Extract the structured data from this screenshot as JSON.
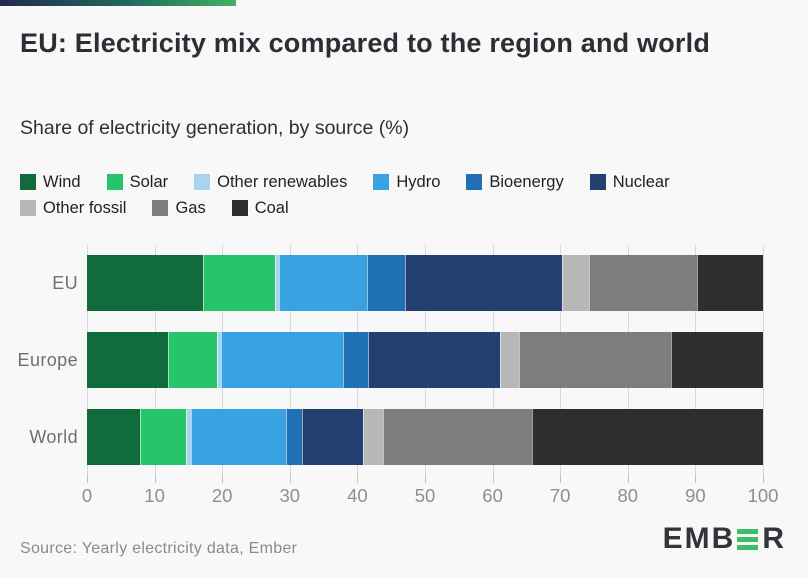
{
  "page": {
    "title": "EU: Electricity mix compared to the region and world",
    "subtitle": "Share of electricity generation, by source (%)",
    "source": "Source: Yearly electricity data, Ember",
    "brand_logo_text_left": "EMB",
    "brand_logo_text_right": "R",
    "brand_accent_green": "#3ebd68",
    "brand_gradient": [
      "#222a4e",
      "#1f6b5c",
      "#41b164"
    ]
  },
  "chart_data": {
    "type": "bar",
    "orientation": "horizontal",
    "stacked": true,
    "grid": true,
    "title": "EU: Electricity mix compared to the region and world",
    "subtitle": "Share of electricity generation, by source (%)",
    "xlabel": "",
    "ylabel": "",
    "xlim": [
      0,
      100
    ],
    "x_ticks": [
      0,
      10,
      20,
      30,
      40,
      50,
      60,
      70,
      80,
      90,
      100
    ],
    "categories": [
      "EU",
      "Europe",
      "World"
    ],
    "series": [
      {
        "name": "Wind",
        "color": "#116b3c",
        "values": [
          17.4,
          12.1,
          8.0
        ]
      },
      {
        "name": "Solar",
        "color": "#26c56a",
        "values": [
          10.6,
          7.2,
          6.6
        ]
      },
      {
        "name": "Other renewables",
        "color": "#a7d4ee",
        "values": [
          0.5,
          0.5,
          0.7
        ]
      },
      {
        "name": "Hydro",
        "color": "#39a2e3",
        "values": [
          12.9,
          18.0,
          14.1
        ]
      },
      {
        "name": "Bioenergy",
        "color": "#1f70b5",
        "values": [
          5.6,
          3.6,
          2.2
        ]
      },
      {
        "name": "Nuclear",
        "color": "#223f70",
        "values": [
          23.4,
          19.7,
          8.9
        ]
      },
      {
        "name": "Other fossil",
        "color": "#b7b7b7",
        "values": [
          3.8,
          2.6,
          2.9
        ]
      },
      {
        "name": "Gas",
        "color": "#7d7d7d",
        "values": [
          16.0,
          22.7,
          22.1
        ]
      },
      {
        "name": "Coal",
        "color": "#2e2e2e",
        "values": [
          9.8,
          13.6,
          34.5
        ]
      }
    ],
    "legend_rows": [
      [
        "Wind",
        "Solar",
        "Other renewables",
        "Hydro",
        "Bioenergy",
        "Nuclear"
      ],
      [
        "Other fossil",
        "Gas",
        "Coal"
      ]
    ],
    "legend_position": "top"
  }
}
